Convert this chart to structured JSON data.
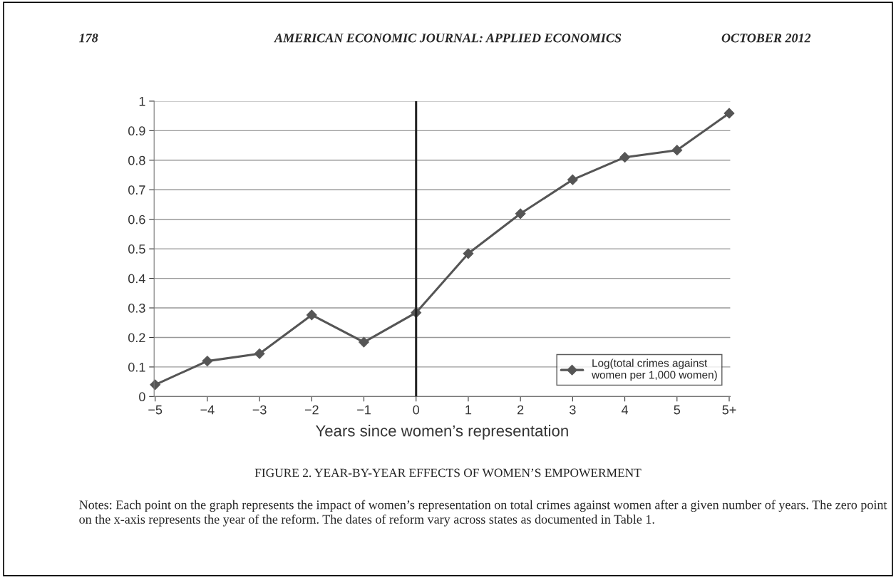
{
  "chart_data": {
    "type": "line",
    "title": "FIGURE 2. YEAR-BY-YEAR EFFECTS OF WOMEN’S EMPOWERMENT",
    "xlabel": "Years since women’s representation",
    "categories": [
      "−5",
      "−4",
      "−3",
      "−2",
      "−1",
      "0",
      "1",
      "2",
      "3",
      "4",
      "5",
      "5+"
    ],
    "series": [
      {
        "name": "Log(total crimes against\nwomen per 1,000 women)",
        "color": "#555555",
        "values": [
          0.04,
          0.12,
          0.145,
          0.276,
          0.184,
          0.284,
          0.484,
          0.619,
          0.734,
          0.81,
          0.834,
          0.959
        ]
      }
    ],
    "ylim": [
      0,
      1
    ],
    "yticks": [
      0,
      0.1,
      0.2,
      0.3,
      0.4,
      0.5,
      0.6,
      0.7,
      0.8,
      0.9,
      1
    ],
    "grid": "y",
    "legend": "bottom right",
    "marker": "diamond",
    "line_style": "solid",
    "ref_lines": [
      {
        "axis": "x",
        "value": "0",
        "color": "#222222",
        "line_style": "solid"
      }
    ],
    "annotations": [
      "178",
      "AMERICAN ECONOMIC JOURNAL: APPLIED ECONOMICS",
      "OCTOBER 2012",
      "Notes: Each point on the graph represents the impact of women’s representation on total crimes against women after a given number of years. The zero point on the x-axis represents the year of the reform. The dates of reform vary across states as documented in Table 1."
    ]
  }
}
